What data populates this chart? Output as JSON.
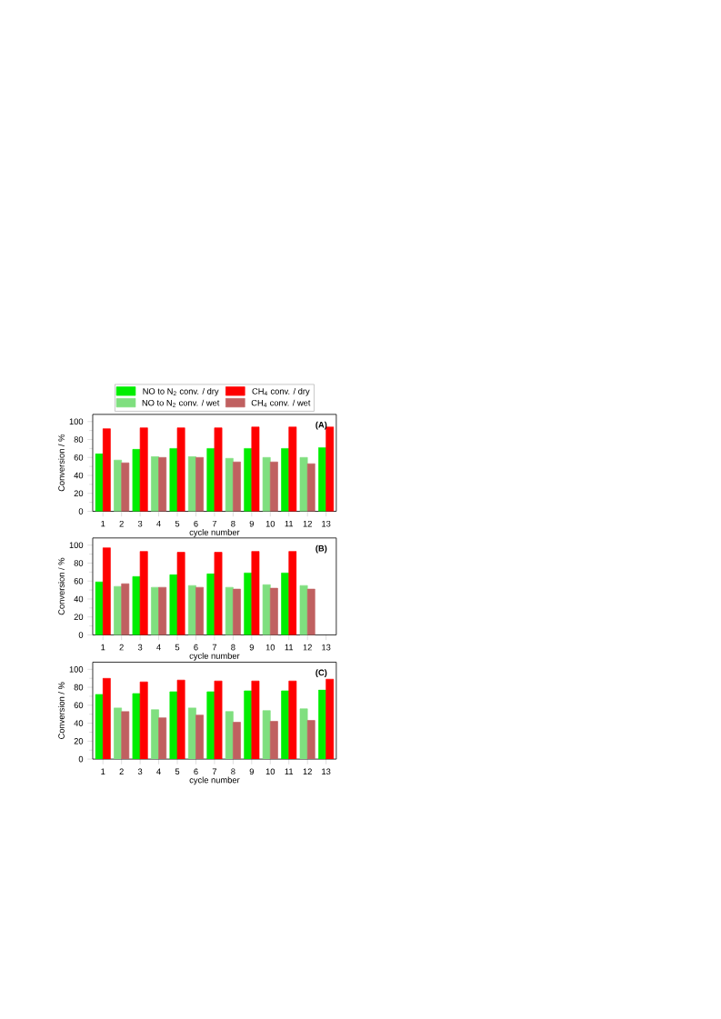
{
  "chart_data": [
    {
      "type": "bar",
      "categories": [
        "1",
        "2",
        "3",
        "4",
        "5",
        "6",
        "7",
        "8",
        "9",
        "10",
        "11",
        "12",
        "13"
      ],
      "xlabel": "cycle number",
      "ylabel": "Conversion / %",
      "ylim": [
        0,
        108
      ],
      "yticks": [
        0,
        20,
        40,
        60,
        80,
        100
      ],
      "legend": "top",
      "annotations": [
        "(A)"
      ],
      "series": [
        {
          "name": "NO to N$_{2}$ conv.  / dry",
          "color": "#00ee00",
          "values": [
            64,
            null,
            69,
            null,
            70,
            null,
            70,
            null,
            70,
            null,
            70,
            null,
            71
          ]
        },
        {
          "name": "CH$_{4}$ conv. / dry",
          "color": "#ff0000",
          "values": [
            92,
            null,
            93,
            null,
            93,
            null,
            93,
            null,
            94,
            null,
            94,
            null,
            94
          ]
        },
        {
          "name": "NO to N$_{2}$ conv. / wet",
          "color": "#7fdf7f",
          "values": [
            null,
            57,
            null,
            61,
            null,
            61,
            null,
            59,
            null,
            60,
            null,
            60,
            null
          ]
        },
        {
          "name": "CH$_{4}$ conv. / wet",
          "color": "#c06060",
          "values": [
            null,
            54,
            null,
            60,
            null,
            60,
            null,
            55,
            null,
            55,
            null,
            53,
            null
          ]
        }
      ]
    },
    {
      "type": "bar",
      "categories": [
        "1",
        "2",
        "3",
        "4",
        "5",
        "6",
        "7",
        "8",
        "9",
        "10",
        "11",
        "12",
        "13"
      ],
      "xlabel": "cycle number",
      "ylabel": "Conversion / %",
      "ylim": [
        0,
        108
      ],
      "yticks": [
        0,
        20,
        40,
        60,
        80,
        100
      ],
      "annotations": [
        "(B)"
      ],
      "series": [
        {
          "color": "#00ee00",
          "values": [
            59,
            null,
            65,
            null,
            67,
            null,
            68,
            null,
            69,
            null,
            69,
            null,
            null
          ]
        },
        {
          "color": "#ff0000",
          "values": [
            97,
            null,
            93,
            null,
            92,
            null,
            92,
            null,
            93,
            null,
            93,
            null,
            null
          ]
        },
        {
          "color": "#7fdf7f",
          "values": [
            null,
            54,
            null,
            53,
            null,
            55,
            null,
            53,
            null,
            56,
            null,
            55,
            null
          ]
        },
        {
          "color": "#c06060",
          "values": [
            null,
            57,
            null,
            53,
            null,
            53,
            null,
            51,
            null,
            52,
            null,
            51,
            null
          ]
        }
      ]
    },
    {
      "type": "bar",
      "categories": [
        "1",
        "2",
        "3",
        "4",
        "5",
        "6",
        "7",
        "8",
        "9",
        "10",
        "11",
        "12",
        "13"
      ],
      "xlabel": "cycle number",
      "ylabel": "Conversion / %",
      "ylim": [
        0,
        108
      ],
      "yticks": [
        0,
        20,
        40,
        60,
        80,
        100
      ],
      "annotations": [
        "(C)"
      ],
      "series": [
        {
          "color": "#00ee00",
          "values": [
            72,
            null,
            73,
            null,
            75,
            null,
            75,
            null,
            76,
            null,
            76,
            null,
            77
          ]
        },
        {
          "color": "#ff0000",
          "values": [
            90,
            null,
            86,
            null,
            88,
            null,
            87,
            null,
            87,
            null,
            87,
            null,
            89
          ]
        },
        {
          "color": "#7fdf7f",
          "values": [
            null,
            57,
            null,
            55,
            null,
            57,
            null,
            53,
            null,
            54,
            null,
            56,
            null
          ]
        },
        {
          "color": "#c06060",
          "values": [
            null,
            53,
            null,
            46,
            null,
            49,
            null,
            41,
            null,
            42,
            null,
            43,
            null
          ]
        }
      ]
    }
  ]
}
